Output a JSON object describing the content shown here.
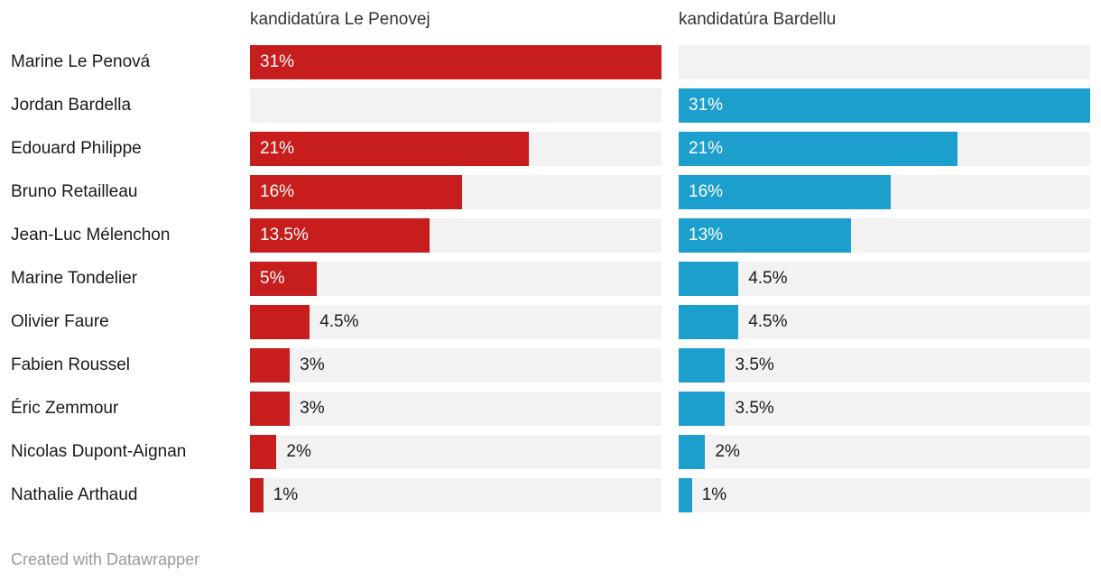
{
  "chart_data": {
    "type": "bar",
    "orientation": "horizontal",
    "max_value": 31,
    "value_suffix": "%",
    "inside_label_min_value": 5,
    "track_color": "#f2f2f2",
    "categories": [
      "Marine Le Penová",
      "Jordan Bardella",
      "Edouard Philippe",
      "Bruno Retailleau",
      "Jean-Luc Mélenchon",
      "Marine Tondelier",
      "Olivier Faure",
      "Fabien Roussel",
      "Éric Zemmour",
      "Nicolas Dupont-Aignan",
      "Nathalie Arthaud"
    ],
    "series": [
      {
        "name": "kandidatúra Le Penovej",
        "color": "#c71e1d",
        "values": [
          31,
          null,
          21,
          16,
          13.5,
          5,
          4.5,
          3,
          3,
          2,
          1
        ],
        "labels": [
          "31%",
          "",
          "21%",
          "16%",
          "13.5%",
          "5%",
          "4.5%",
          "3%",
          "3%",
          "2%",
          "1%"
        ]
      },
      {
        "name": "kandidatúra Bardellu",
        "color": "#1d9fce",
        "values": [
          null,
          31,
          21,
          16,
          13,
          4.5,
          4.5,
          3.5,
          3.5,
          2,
          1
        ],
        "labels": [
          "",
          "31%",
          "21%",
          "16%",
          "13%",
          "4.5%",
          "4.5%",
          "3.5%",
          "3.5%",
          "2%",
          "1%"
        ]
      }
    ],
    "legend_position": "column-headers",
    "grid": false
  },
  "footer": {
    "credit": "Created with Datawrapper"
  },
  "colors": {
    "background": "#ffffff",
    "label_text": "#1a1a1a",
    "header_text": "#333333",
    "value_inside": "#ffffff",
    "value_outside": "#1a1a1a",
    "credit_text": "#9a9a9a"
  }
}
